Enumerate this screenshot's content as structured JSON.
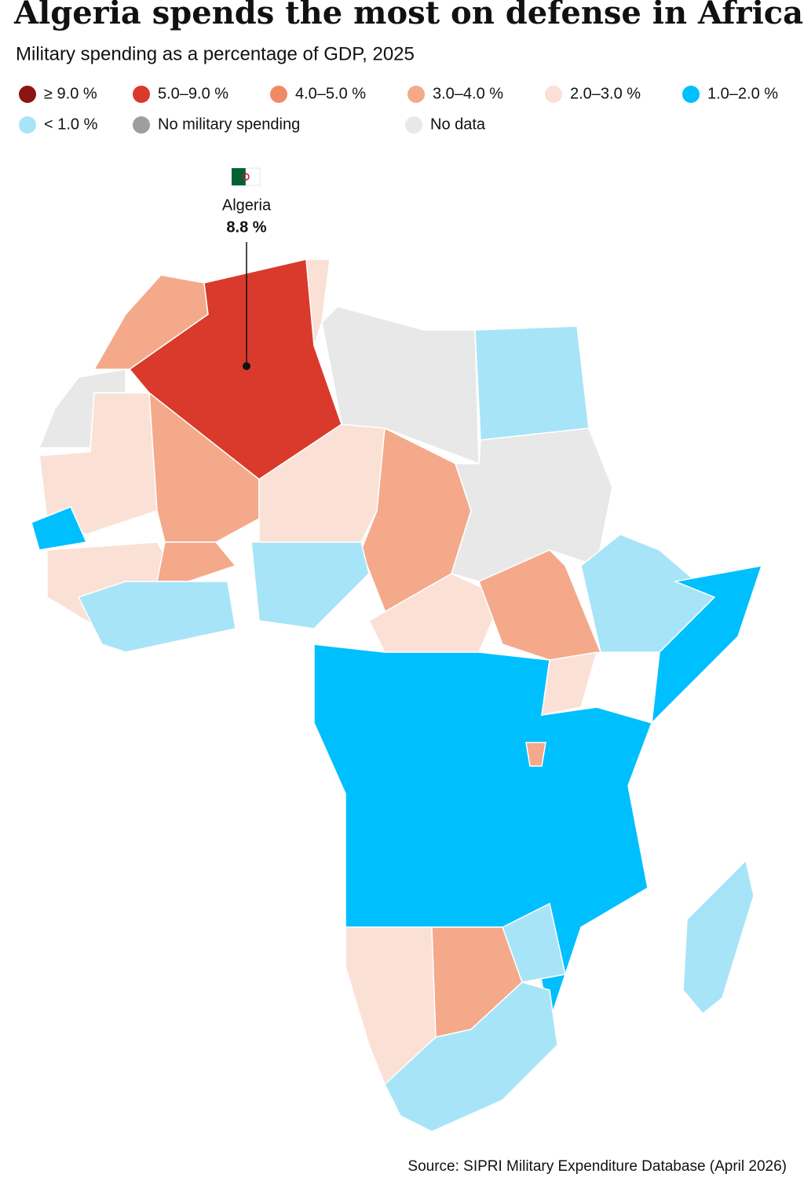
{
  "header": {
    "title": "Algeria spends the most on defense in Africa",
    "subtitle": "Military spending as a percentage of GDP, 2025"
  },
  "legend": [
    {
      "label": "≥ 9.0 %",
      "color": "#8b1414"
    },
    {
      "label": "5.0–9.0 %",
      "color": "#d93a2b"
    },
    {
      "label": "4.0–5.0 %",
      "color": "#f08a64"
    },
    {
      "label": "3.0–4.0 %",
      "color": "#f4a98a"
    },
    {
      "label": "2.0–3.0 %",
      "color": "#fbe0d6"
    },
    {
      "label": "1.0–2.0 %",
      "color": "#00bfff"
    },
    {
      "label": "< 1.0 %",
      "color": "#a8e4f8"
    },
    {
      "label": "No military spending",
      "color": "#9e9e9e"
    },
    {
      "label": "No data",
      "color": "#e8e8e8"
    }
  ],
  "annotation": {
    "country": "Algeria",
    "value": "8.8 %"
  },
  "footer": {
    "source": "Source: SIPRI Military Expenditure Database (April 2026)"
  }
}
